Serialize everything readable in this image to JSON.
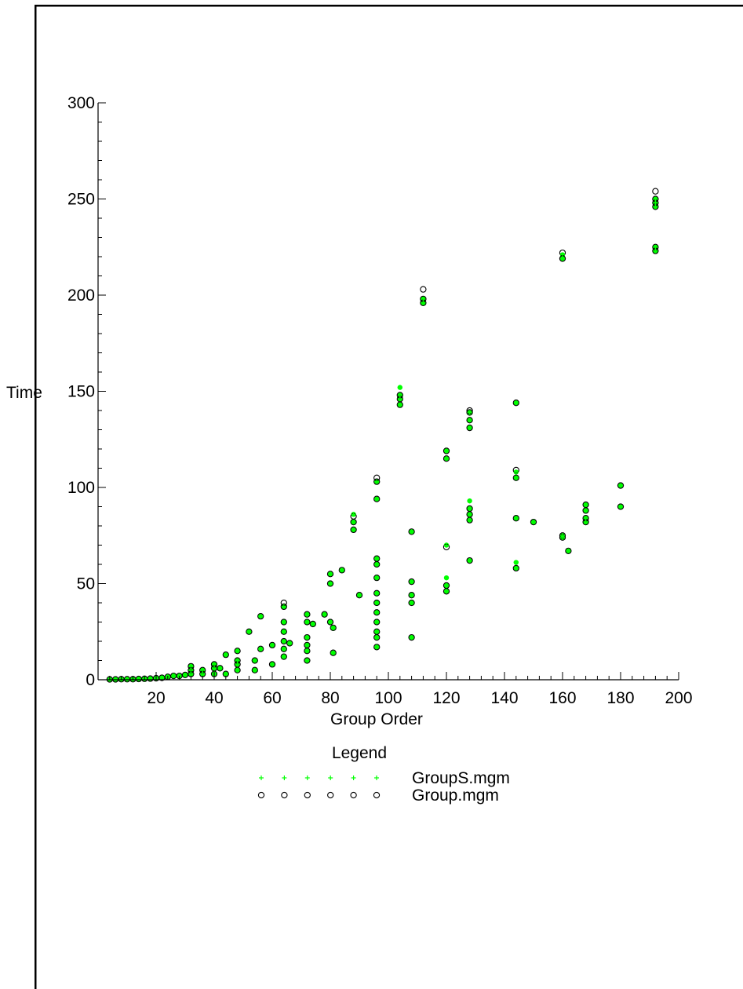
{
  "chart_data": {
    "type": "scatter",
    "xlabel": "Group Order",
    "ylabel": "Time",
    "xlim": [
      0,
      200
    ],
    "ylim": [
      0,
      300
    ],
    "x_ticks": [
      20,
      40,
      60,
      80,
      100,
      120,
      140,
      160,
      180,
      200
    ],
    "y_ticks": [
      0,
      50,
      100,
      150,
      200,
      250,
      300
    ],
    "grid": false,
    "legend_title": "Legend",
    "legend_position": "bottom",
    "series": [
      {
        "name": "GroupS.mgm",
        "marker": "plus",
        "color": "#00ff00",
        "points": [
          [
            4,
            0.2
          ],
          [
            6,
            0.2
          ],
          [
            8,
            0.3
          ],
          [
            10,
            0.3
          ],
          [
            12,
            0.3
          ],
          [
            14,
            0.4
          ],
          [
            16,
            0.5
          ],
          [
            18,
            0.6
          ],
          [
            20,
            0.8
          ],
          [
            22,
            1
          ],
          [
            24,
            1.5
          ],
          [
            26,
            2
          ],
          [
            28,
            2
          ],
          [
            30,
            2.5
          ],
          [
            32,
            3
          ],
          [
            32,
            5
          ],
          [
            32,
            7
          ],
          [
            36,
            3
          ],
          [
            36,
            5
          ],
          [
            40,
            3
          ],
          [
            40,
            6
          ],
          [
            40,
            8
          ],
          [
            42,
            6
          ],
          [
            44,
            3
          ],
          [
            44,
            13
          ],
          [
            48,
            5
          ],
          [
            48,
            8
          ],
          [
            48,
            10
          ],
          [
            48,
            15
          ],
          [
            52,
            25
          ],
          [
            54,
            5
          ],
          [
            54,
            10
          ],
          [
            56,
            16
          ],
          [
            56,
            33
          ],
          [
            60,
            8
          ],
          [
            60,
            18
          ],
          [
            64,
            12
          ],
          [
            64,
            16
          ],
          [
            64,
            20
          ],
          [
            64,
            25
          ],
          [
            64,
            30
          ],
          [
            64,
            38
          ],
          [
            66,
            19
          ],
          [
            72,
            10
          ],
          [
            72,
            15
          ],
          [
            72,
            18
          ],
          [
            72,
            22
          ],
          [
            72,
            30
          ],
          [
            72,
            34
          ],
          [
            74,
            29
          ],
          [
            78,
            34
          ],
          [
            80,
            30
          ],
          [
            80,
            50
          ],
          [
            80,
            55
          ],
          [
            81,
            14
          ],
          [
            81,
            27
          ],
          [
            84,
            57
          ],
          [
            88,
            78
          ],
          [
            88,
            82
          ],
          [
            88,
            86
          ],
          [
            90,
            44
          ],
          [
            96,
            17
          ],
          [
            96,
            22
          ],
          [
            96,
            25
          ],
          [
            96,
            30
          ],
          [
            96,
            35
          ],
          [
            96,
            40
          ],
          [
            96,
            45
          ],
          [
            96,
            53
          ],
          [
            96,
            60
          ],
          [
            96,
            63
          ],
          [
            96,
            94
          ],
          [
            96,
            103
          ],
          [
            104,
            143
          ],
          [
            104,
            146
          ],
          [
            104,
            148
          ],
          [
            104,
            152
          ],
          [
            108,
            22
          ],
          [
            108,
            40
          ],
          [
            108,
            44
          ],
          [
            108,
            51
          ],
          [
            108,
            77
          ],
          [
            112,
            196
          ],
          [
            112,
            198
          ],
          [
            120,
            46
          ],
          [
            120,
            49
          ],
          [
            120,
            53
          ],
          [
            120,
            70
          ],
          [
            120,
            115
          ],
          [
            120,
            119
          ],
          [
            128,
            62
          ],
          [
            128,
            83
          ],
          [
            128,
            86
          ],
          [
            128,
            89
          ],
          [
            128,
            93
          ],
          [
            128,
            131
          ],
          [
            128,
            135
          ],
          [
            128,
            139
          ],
          [
            144,
            58
          ],
          [
            144,
            61
          ],
          [
            144,
            84
          ],
          [
            144,
            105
          ],
          [
            144,
            108
          ],
          [
            144,
            144
          ],
          [
            150,
            82
          ],
          [
            160,
            74
          ],
          [
            160,
            75
          ],
          [
            160,
            219
          ],
          [
            160,
            221
          ],
          [
            162,
            67
          ],
          [
            168,
            82
          ],
          [
            168,
            84
          ],
          [
            168,
            88
          ],
          [
            168,
            91
          ],
          [
            180,
            90
          ],
          [
            180,
            101
          ],
          [
            192,
            223
          ],
          [
            192,
            225
          ],
          [
            192,
            246
          ],
          [
            192,
            248
          ],
          [
            192,
            250
          ]
        ]
      },
      {
        "name": "Group.mgm",
        "marker": "circle",
        "color": "#000000",
        "points": [
          [
            4,
            0.2
          ],
          [
            6,
            0.2
          ],
          [
            8,
            0.3
          ],
          [
            10,
            0.3
          ],
          [
            12,
            0.3
          ],
          [
            14,
            0.4
          ],
          [
            16,
            0.5
          ],
          [
            18,
            0.6
          ],
          [
            20,
            0.8
          ],
          [
            22,
            1
          ],
          [
            24,
            1.5
          ],
          [
            26,
            2
          ],
          [
            28,
            2
          ],
          [
            30,
            2.5
          ],
          [
            32,
            3
          ],
          [
            32,
            5
          ],
          [
            32,
            7
          ],
          [
            36,
            3
          ],
          [
            36,
            5
          ],
          [
            40,
            3
          ],
          [
            40,
            6
          ],
          [
            40,
            8
          ],
          [
            42,
            6
          ],
          [
            44,
            3
          ],
          [
            44,
            13
          ],
          [
            48,
            5
          ],
          [
            48,
            8
          ],
          [
            48,
            10
          ],
          [
            48,
            15
          ],
          [
            52,
            25
          ],
          [
            54,
            5
          ],
          [
            54,
            10
          ],
          [
            56,
            16
          ],
          [
            56,
            33
          ],
          [
            60,
            8
          ],
          [
            60,
            18
          ],
          [
            64,
            12
          ],
          [
            64,
            16
          ],
          [
            64,
            20
          ],
          [
            64,
            25
          ],
          [
            64,
            30
          ],
          [
            64,
            38
          ],
          [
            64,
            40
          ],
          [
            66,
            19
          ],
          [
            72,
            10
          ],
          [
            72,
            15
          ],
          [
            72,
            18
          ],
          [
            72,
            22
          ],
          [
            72,
            30
          ],
          [
            72,
            34
          ],
          [
            74,
            29
          ],
          [
            78,
            34
          ],
          [
            80,
            30
          ],
          [
            80,
            50
          ],
          [
            80,
            55
          ],
          [
            81,
            14
          ],
          [
            81,
            27
          ],
          [
            84,
            57
          ],
          [
            88,
            78
          ],
          [
            88,
            82
          ],
          [
            88,
            85
          ],
          [
            90,
            44
          ],
          [
            96,
            17
          ],
          [
            96,
            22
          ],
          [
            96,
            25
          ],
          [
            96,
            30
          ],
          [
            96,
            35
          ],
          [
            96,
            40
          ],
          [
            96,
            45
          ],
          [
            96,
            53
          ],
          [
            96,
            60
          ],
          [
            96,
            63
          ],
          [
            96,
            94
          ],
          [
            96,
            103
          ],
          [
            96,
            105
          ],
          [
            104,
            143
          ],
          [
            104,
            146
          ],
          [
            104,
            148
          ],
          [
            108,
            22
          ],
          [
            108,
            40
          ],
          [
            108,
            44
          ],
          [
            108,
            51
          ],
          [
            108,
            77
          ],
          [
            112,
            196
          ],
          [
            112,
            198
          ],
          [
            112,
            203
          ],
          [
            120,
            46
          ],
          [
            120,
            49
          ],
          [
            120,
            69
          ],
          [
            120,
            115
          ],
          [
            120,
            119
          ],
          [
            128,
            62
          ],
          [
            128,
            83
          ],
          [
            128,
            86
          ],
          [
            128,
            89
          ],
          [
            128,
            131
          ],
          [
            128,
            135
          ],
          [
            128,
            139
          ],
          [
            128,
            140
          ],
          [
            144,
            58
          ],
          [
            144,
            84
          ],
          [
            144,
            105
          ],
          [
            144,
            109
          ],
          [
            144,
            144
          ],
          [
            150,
            82
          ],
          [
            160,
            74
          ],
          [
            160,
            75
          ],
          [
            160,
            219
          ],
          [
            160,
            222
          ],
          [
            162,
            67
          ],
          [
            168,
            82
          ],
          [
            168,
            84
          ],
          [
            168,
            88
          ],
          [
            168,
            91
          ],
          [
            180,
            90
          ],
          [
            180,
            101
          ],
          [
            192,
            223
          ],
          [
            192,
            225
          ],
          [
            192,
            246
          ],
          [
            192,
            248
          ],
          [
            192,
            250
          ],
          [
            192,
            254
          ]
        ]
      }
    ]
  }
}
